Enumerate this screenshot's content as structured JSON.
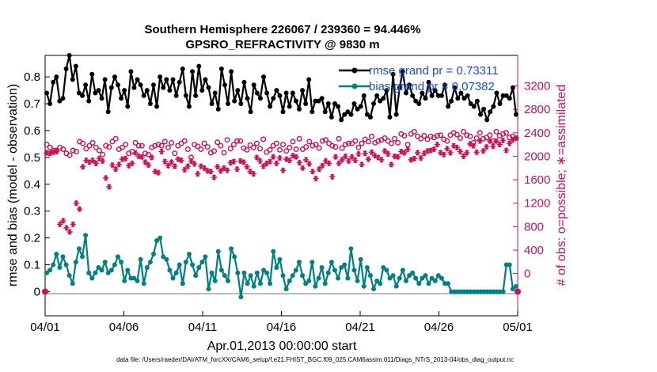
{
  "chart_data": {
    "type": "line",
    "title": [
      "Southern Hemisphere 226067 / 239360 = 94.446%",
      "GPSRO_REFRACTIVITY @ 9830 m"
    ],
    "xlabel": "Apr.01,2013 00:00:00 start",
    "ylabel_left": "rmse and bias (model - observation)",
    "ylabel_right": "# of obs: o=possible; ∗=assimilated",
    "x_ticks": [
      "04/01",
      "04/06",
      "04/11",
      "04/16",
      "04/21",
      "04/26",
      "05/01"
    ],
    "x_range_days": [
      0,
      30
    ],
    "y_left_range": [
      -0.09,
      0.88
    ],
    "y_left_ticks": [
      0,
      0.1,
      0.2,
      0.3,
      0.4,
      0.5,
      0.6,
      0.7,
      0.8
    ],
    "y_right_range": [
      -720,
      3720
    ],
    "y_right_ticks": [
      0,
      400,
      800,
      1200,
      1600,
      2000,
      2400,
      2800,
      3200
    ],
    "legend": [
      "rmse grand pr = 0.73311",
      "bias grand pr = 0.07382"
    ],
    "footnote": "data file: /Users/raeder/DAI/ATM_forcXX/CAM6_setup/f.e21.FHIST_BGC.f09_025.CAM6assim.011/Diags_NTrS_2013-04/obs_diag_output.nc",
    "colors": {
      "rmse": "#000000",
      "bias": "#008080",
      "obs": "#cc1155",
      "zero": "#bbbbbb"
    },
    "series": [
      {
        "name": "rmse",
        "axis": "left",
        "values": [
          0.74,
          0.7,
          0.78,
          0.8,
          0.71,
          0.72,
          0.83,
          0.88,
          0.79,
          0.84,
          0.74,
          0.73,
          0.77,
          0.71,
          0.81,
          0.74,
          0.75,
          0.72,
          0.79,
          0.67,
          0.76,
          0.8,
          0.77,
          0.72,
          0.75,
          0.69,
          0.82,
          0.76,
          0.79,
          0.77,
          0.73,
          0.75,
          0.7,
          0.77,
          0.69,
          0.8,
          0.76,
          0.79,
          0.75,
          0.79,
          0.73,
          0.78,
          0.83,
          0.73,
          0.69,
          0.82,
          0.73,
          0.84,
          0.75,
          0.79,
          0.76,
          0.7,
          0.74,
          0.68,
          0.83,
          0.77,
          0.7,
          0.82,
          0.71,
          0.75,
          0.7,
          0.78,
          0.72,
          0.67,
          0.77,
          0.74,
          0.72,
          0.8,
          0.74,
          0.69,
          0.72,
          0.75,
          0.73,
          0.67,
          0.74,
          0.69,
          0.74,
          0.71,
          0.68,
          0.75,
          0.7,
          0.79,
          0.67,
          0.71,
          0.71,
          0.72,
          0.67,
          0.7,
          0.65,
          0.7,
          0.69,
          0.64,
          0.66,
          0.67,
          0.66,
          0.7,
          0.68,
          0.69,
          0.73,
          0.66,
          0.65,
          0.7,
          0.73,
          0.71,
          0.72,
          0.75,
          0.65,
          0.81,
          0.66,
          0.76,
          0.82,
          0.74,
          0.77,
          0.73,
          0.71,
          0.7,
          0.74,
          0.72,
          0.78,
          0.73,
          0.75,
          0.73,
          0.73,
          0.77,
          0.69,
          0.71,
          0.76,
          0.72,
          0.74,
          0.72,
          0.73,
          0.7,
          0.69,
          0.71,
          0.66,
          0.68,
          0.64,
          0.67,
          0.69,
          0.74,
          0.7,
          0.73,
          0.73,
          0.72,
          0.76,
          0.66
        ]
      },
      {
        "name": "bias",
        "axis": "left",
        "values": [
          0.07,
          0.08,
          0.1,
          0.14,
          0.09,
          0.13,
          0.1,
          0.06,
          0.03,
          0.11,
          0.16,
          0.13,
          0.21,
          0.07,
          0.05,
          0.07,
          0.09,
          0.08,
          0.11,
          0.07,
          0.08,
          0.1,
          0.13,
          0.11,
          0.04,
          0.08,
          0.05,
          0.05,
          0.04,
          0.12,
          0.03,
          0.09,
          0.11,
          0.14,
          0.19,
          0.2,
          0.13,
          0.12,
          0.08,
          0.05,
          0.07,
          0.1,
          0.03,
          0.11,
          0.14,
          0.1,
          0.06,
          0.09,
          0.11,
          0.13,
          0.01,
          0.07,
          0.04,
          0.15,
          0.08,
          0.06,
          0.04,
          0.16,
          0.13,
          0.07,
          -0.02,
          0.07,
          0.03,
          0.06,
          0.02,
          0.07,
          0.03,
          0.08,
          0.07,
          0.03,
          0.15,
          0.09,
          0.12,
          0.06,
          0.01,
          0.04,
          0.06,
          0.08,
          0.11,
          0.06,
          0.03,
          0.04,
          0.11,
          0.02,
          0.05,
          0.09,
          0.03,
          0.07,
          0.11,
          0.08,
          0.05,
          0.09,
          0.1,
          0.05,
          0.16,
          0.08,
          0.04,
          0.12,
          0.02,
          0.09,
          0.06,
          0.01,
          0.04,
          0.03,
          0.09,
          0.08,
          0.05,
          0.06,
          0.02,
          0.05,
          0.08,
          0.04,
          0.06,
          0.07,
          0.05,
          0.03,
          0.05,
          0.06,
          0.03,
          0.05,
          0.04,
          0.06,
          0.05,
          0.03,
          0.03,
          0.0,
          0.0,
          0.0,
          0.0,
          0.0,
          0.0,
          0.0,
          0.0,
          0.0,
          0.0,
          0.0,
          0.0,
          0.0,
          0.0,
          0.0,
          0.0,
          0.0,
          0.1,
          0.1,
          0.01,
          0.02
        ]
      },
      {
        "name": "possible",
        "axis": "right",
        "marker": "circle",
        "values": [
          2200,
          2150,
          2100,
          2100,
          2150,
          2120,
          2050,
          2020,
          2100,
          2080,
          2250,
          2220,
          2130,
          2180,
          2230,
          2150,
          2100,
          2030,
          2180,
          2160,
          2250,
          2300,
          2120,
          2150,
          2200,
          2050,
          2080,
          2230,
          2180,
          2180,
          2050,
          2030,
          2150,
          2180,
          2200,
          2180,
          2250,
          2150,
          2230,
          2050,
          2180,
          2220,
          2260,
          2120,
          1980,
          2200,
          2170,
          2120,
          2220,
          2160,
          2060,
          2090,
          2240,
          2180,
          2060,
          2280,
          2130,
          2200,
          2260,
          2260,
          2140,
          2110,
          2190,
          2150,
          2220,
          2130,
          2290,
          2070,
          2110,
          2180,
          2220,
          2110,
          2200,
          2090,
          2150,
          2250,
          2120,
          2300,
          2120,
          2160,
          2250,
          2180,
          2200,
          2140,
          2260,
          2280,
          2220,
          2180,
          2160,
          2300,
          2140,
          2200,
          2220,
          2220,
          2260,
          2150,
          2220,
          2290,
          2250,
          2340,
          2230,
          2260,
          2280,
          2310,
          2260,
          2220,
          2300,
          2230,
          2380,
          2350,
          2200,
          2380,
          2420,
          2340,
          2300,
          2350,
          2290,
          2340,
          2320,
          2350,
          2360,
          2290,
          2260,
          2360,
          2400,
          2370,
          2310,
          2420,
          2360,
          2340,
          2230,
          2310,
          2400,
          2300,
          2320,
          2360,
          2260,
          2420,
          2350,
          2380,
          2400,
          2320,
          2340,
          2310
        ]
      },
      {
        "name": "assimilated",
        "axis": "right",
        "marker": "star",
        "values": [
          2060,
          2050,
          2070,
          2080,
          840,
          900,
          780,
          710,
          840,
          1200,
          1100,
          1820,
          1930,
          1900,
          1930,
          1880,
          1960,
          1920,
          1630,
          1480,
          1850,
          1780,
          1860,
          1950,
          1960,
          1840,
          1880,
          2060,
          2000,
          1990,
          1900,
          1850,
          1980,
          1740,
          1720,
          2080,
          1910,
          1840,
          1900,
          1830,
          1950,
          1930,
          1770,
          1830,
          1920,
          1870,
          1700,
          1830,
          1800,
          1750,
          1740,
          1640,
          1820,
          1750,
          1800,
          1760,
          1890,
          1910,
          1780,
          1920,
          1900,
          1820,
          1740,
          1700,
          1980,
          1920,
          1830,
          1880,
          1910,
          1990,
          1880,
          1970,
          1760,
          1950,
          1930,
          2010,
          1990,
          1890,
          1800,
          1940,
          1870,
          1740,
          1620,
          1780,
          1840,
          1920,
          1880,
          1650,
          1990,
          1880,
          1940,
          2000,
          1920,
          1990,
          1930,
          2040,
          1860,
          2050,
          1950,
          2070,
          2010,
          1980,
          1940,
          2090,
          2040,
          1860,
          2000,
          1990,
          2080,
          2060,
          2120,
          1940,
          1960,
          2060,
          1970,
          2050,
          2090,
          2100,
          2120,
          2200,
          2060,
          2030,
          2130,
          2060,
          2180,
          2150,
          2080,
          2000,
          2060,
          2210,
          2180,
          2070,
          2260,
          2090,
          2160,
          2260,
          2170,
          2260,
          2200,
          2270,
          2100,
          2220,
          2280,
          2310
        ]
      }
    ]
  }
}
